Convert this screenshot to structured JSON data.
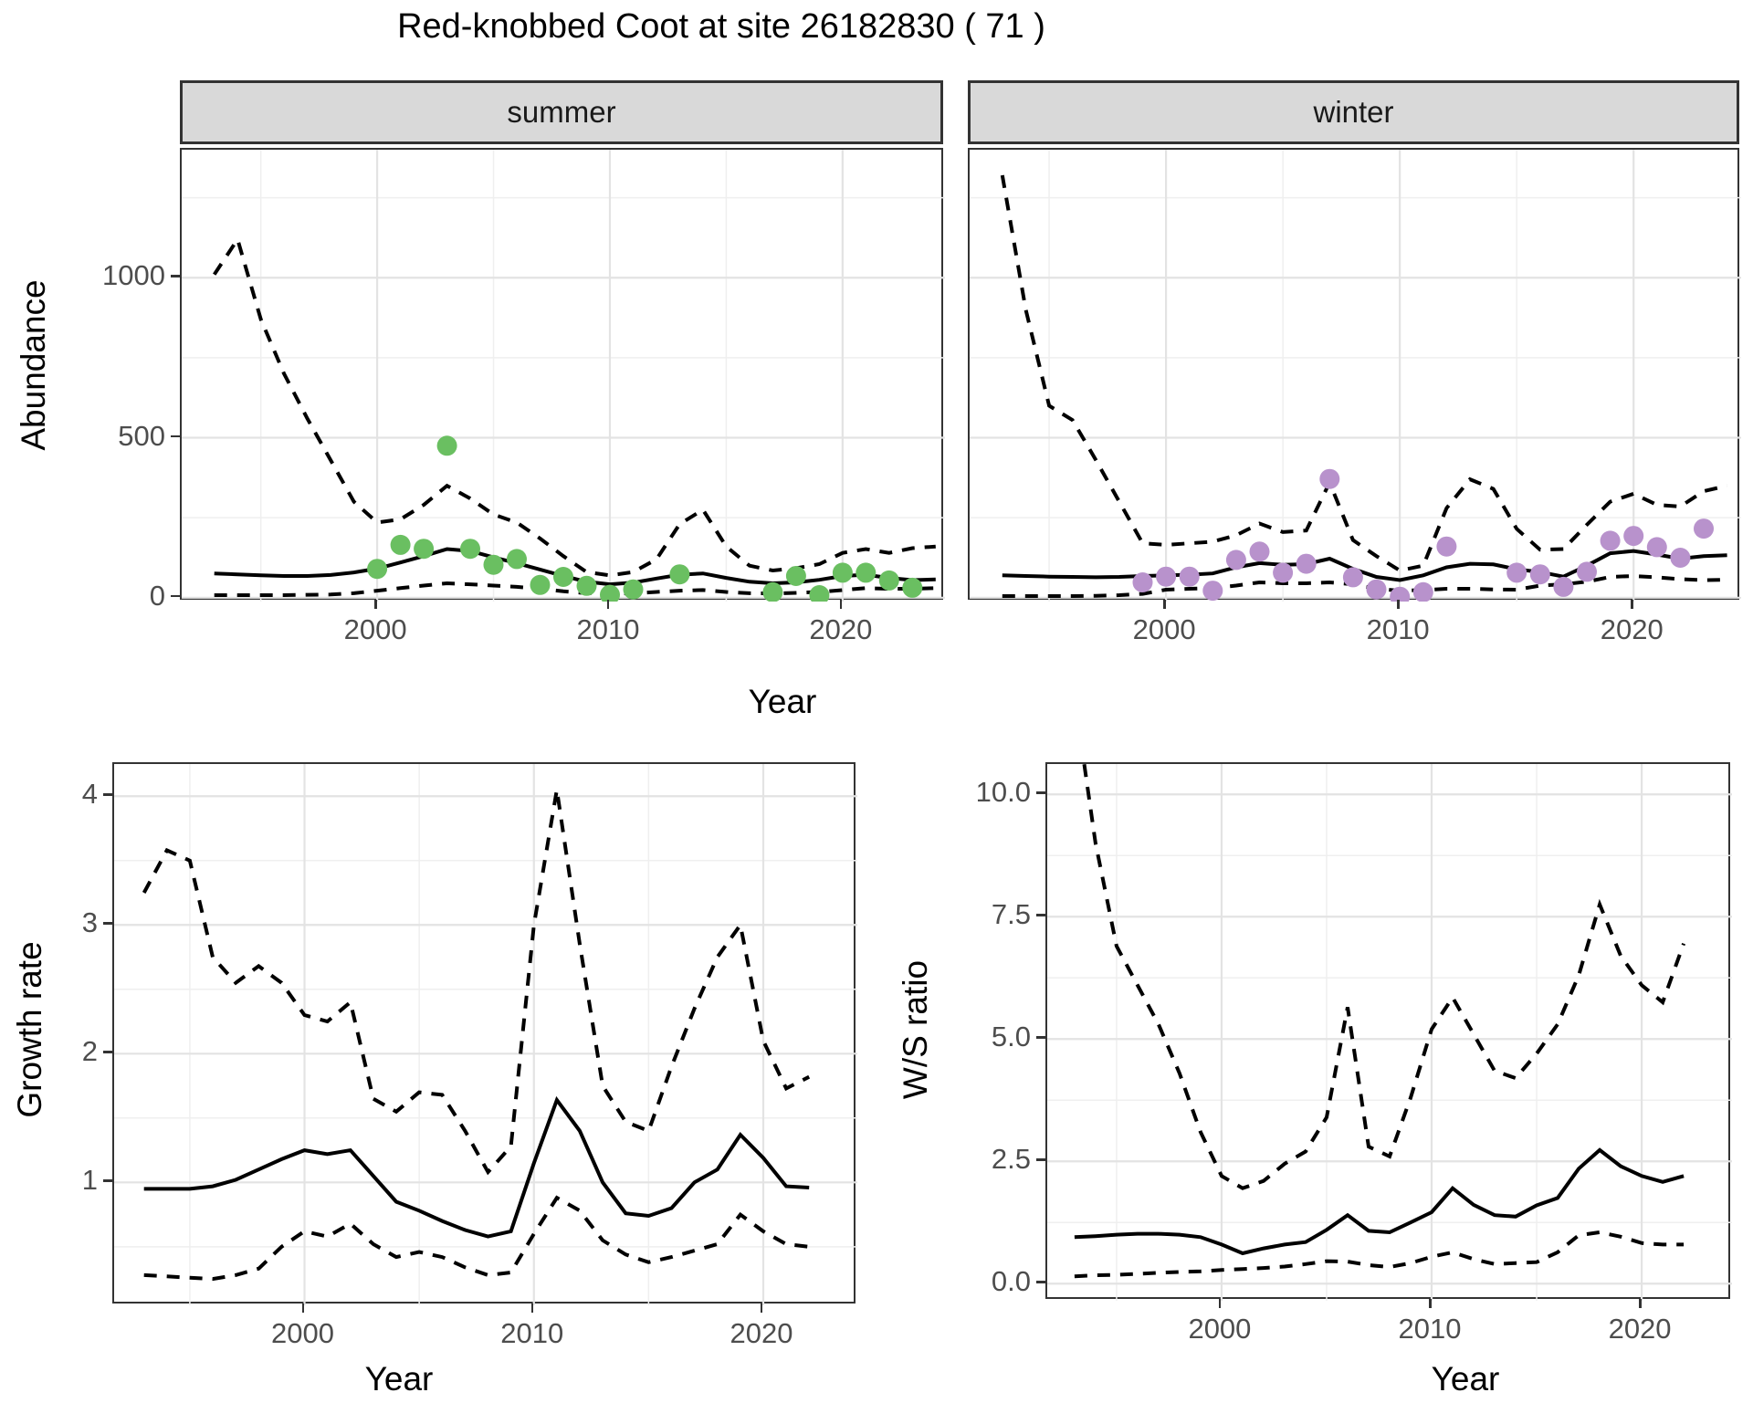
{
  "title": "Red-knobbed Coot at site 26182830 ( 71 )",
  "colors": {
    "summer_point": "#6abf61",
    "winter_point": "#b892cc",
    "line": "#000000",
    "strip_background": "#d9d9d9",
    "panel_border": "#333333",
    "grid_major": "#e3e3e3",
    "grid_minor": "#efefef",
    "tick_text": "#4d4d4d"
  },
  "chart_data": [
    {
      "id": "abundance-summer",
      "type": "line+scatter",
      "facet_label": "summer",
      "xlabel": "Year",
      "ylabel": "Abundance",
      "xlim": [
        1991.6,
        2024.4
      ],
      "ylim": [
        -12,
        1400
      ],
      "grid": true,
      "legend": "none",
      "xticks": {
        "major": [
          2000,
          2010,
          2020
        ],
        "minor": [
          1995,
          2005,
          2015
        ],
        "labels": [
          "2000",
          "2010",
          "2020"
        ]
      },
      "yticks": {
        "major": [
          0,
          500,
          1000
        ],
        "minor": [
          250,
          750,
          1250
        ],
        "labels": [
          "0",
          "500",
          "1000"
        ]
      },
      "years": [
        1993,
        1994,
        1995,
        1996,
        1997,
        1998,
        1999,
        2000,
        2001,
        2002,
        2003,
        2004,
        2005,
        2006,
        2007,
        2008,
        2009,
        2010,
        2011,
        2012,
        2013,
        2014,
        2015,
        2016,
        2017,
        2018,
        2019,
        2020,
        2021,
        2022,
        2023,
        2024
      ],
      "lines": [
        {
          "name": "mean",
          "dash": "solid",
          "values": [
            76,
            73,
            70,
            68,
            68,
            71,
            79,
            91,
            110,
            130,
            152,
            146,
            126,
            108,
            88,
            68,
            50,
            42,
            47,
            60,
            72,
            76,
            62,
            50,
            45,
            48,
            56,
            68,
            72,
            62,
            55,
            57
          ]
        },
        {
          "name": "ci-upper",
          "dash": "dashed",
          "values": [
            1010,
            1120,
            870,
            700,
            560,
            430,
            300,
            235,
            245,
            290,
            350,
            310,
            260,
            235,
            185,
            130,
            80,
            70,
            80,
            120,
            230,
            275,
            160,
            100,
            85,
            92,
            105,
            140,
            152,
            140,
            155,
            160
          ]
        },
        {
          "name": "ci-lower",
          "dash": "dashed",
          "values": [
            8,
            8,
            8,
            8,
            9,
            10,
            14,
            22,
            30,
            38,
            45,
            42,
            38,
            34,
            28,
            20,
            14,
            12,
            14,
            18,
            22,
            24,
            18,
            14,
            13,
            15,
            18,
            24,
            30,
            28,
            28,
            30
          ]
        }
      ],
      "points": {
        "name": "observed-summer",
        "color_key": "summer_point",
        "x": [
          2000,
          2001,
          2002,
          2003,
          2004,
          2005,
          2006,
          2007,
          2008,
          2009,
          2010,
          2011,
          2013,
          2017,
          2018,
          2019,
          2020,
          2021,
          2022,
          2023
        ],
        "y": [
          90,
          165,
          153,
          475,
          153,
          103,
          121,
          40,
          65,
          37,
          9,
          26,
          73,
          17,
          68,
          8,
          78,
          78,
          54,
          31
        ]
      }
    },
    {
      "id": "abundance-winter",
      "type": "line+scatter",
      "facet_label": "winter",
      "xlabel": "Year",
      "ylabel": "Abundance",
      "xlim": [
        1991.6,
        2024.6
      ],
      "ylim": [
        -12,
        1400
      ],
      "grid": true,
      "legend": "none",
      "xticks": {
        "major": [
          2000,
          2010,
          2020
        ],
        "minor": [
          1995,
          2005,
          2015
        ],
        "labels": [
          "2000",
          "2010",
          "2020"
        ]
      },
      "yticks": {
        "major": [
          0,
          500,
          1000
        ],
        "minor": [
          250,
          750,
          1250
        ],
        "labels": [
          "0",
          "500",
          "1000"
        ]
      },
      "years": [
        1993,
        1994,
        1995,
        1996,
        1997,
        1998,
        1999,
        2000,
        2001,
        2002,
        2003,
        2004,
        2005,
        2006,
        2007,
        2008,
        2009,
        2010,
        2011,
        2012,
        2013,
        2014,
        2015,
        2016,
        2017,
        2018,
        2019,
        2020,
        2021,
        2022,
        2023,
        2024
      ],
      "lines": [
        {
          "name": "mean",
          "dash": "solid",
          "values": [
            70,
            68,
            66,
            65,
            64,
            65,
            68,
            70,
            72,
            76,
            95,
            108,
            103,
            105,
            122,
            90,
            65,
            55,
            70,
            95,
            106,
            104,
            89,
            80,
            66,
            100,
            139,
            146,
            135,
            122,
            130,
            133
          ]
        },
        {
          "name": "ci-upper",
          "dash": "dashed",
          "values": [
            1320,
            900,
            600,
            555,
            430,
            300,
            170,
            165,
            170,
            175,
            195,
            232,
            205,
            210,
            360,
            180,
            130,
            85,
            100,
            280,
            370,
            340,
            215,
            150,
            152,
            228,
            300,
            325,
            290,
            285,
            333,
            350
          ]
        },
        {
          "name": "ci-lower",
          "dash": "dashed",
          "values": [
            5,
            5,
            5,
            5,
            6,
            8,
            12,
            25,
            28,
            30,
            38,
            48,
            45,
            45,
            48,
            42,
            28,
            22,
            24,
            28,
            28,
            26,
            25,
            38,
            42,
            50,
            65,
            68,
            64,
            58,
            55,
            56
          ]
        }
      ],
      "points": {
        "name": "observed-winter",
        "color_key": "winter_point",
        "x": [
          1999,
          2000,
          2001,
          2002,
          2003,
          2004,
          2005,
          2006,
          2007,
          2008,
          2009,
          2010,
          2011,
          2012,
          2015,
          2016,
          2017,
          2018,
          2019,
          2020,
          2021,
          2022,
          2023
        ],
        "y": [
          48,
          66,
          66,
          22,
          118,
          144,
          78,
          106,
          371,
          64,
          26,
          3,
          17,
          160,
          78,
          73,
          34,
          81,
          178,
          193,
          158,
          125,
          216
        ]
      }
    },
    {
      "id": "growth-rate",
      "type": "line",
      "facet_label": "",
      "xlabel": "Year",
      "ylabel": "Growth rate",
      "xlim": [
        1991.7,
        2024.1
      ],
      "ylim": [
        0.045,
        4.25
      ],
      "grid": true,
      "legend": "none",
      "xticks": {
        "major": [
          2000,
          2010,
          2020
        ],
        "minor": [
          1995,
          2005,
          2015
        ],
        "labels": [
          "2000",
          "2010",
          "2020"
        ]
      },
      "yticks": {
        "major": [
          1,
          2,
          3,
          4
        ],
        "minor": [
          0.5,
          1.5,
          2.5,
          3.5
        ],
        "labels": [
          "1",
          "2",
          "3",
          "4"
        ]
      },
      "years": [
        1993,
        1994,
        1995,
        1996,
        1997,
        1998,
        1999,
        2000,
        2001,
        2002,
        2003,
        2004,
        2005,
        2006,
        2007,
        2008,
        2009,
        2010,
        2011,
        2012,
        2013,
        2014,
        2015,
        2016,
        2017,
        2018,
        2019,
        2020,
        2021,
        2022
      ],
      "lines": [
        {
          "name": "mean",
          "dash": "solid",
          "values": [
            0.95,
            0.95,
            0.95,
            0.97,
            1.02,
            1.1,
            1.18,
            1.25,
            1.22,
            1.25,
            1.05,
            0.85,
            0.78,
            0.7,
            0.63,
            0.58,
            0.62,
            1.15,
            1.64,
            1.4,
            1.0,
            0.76,
            0.74,
            0.8,
            1.0,
            1.1,
            1.37,
            1.19,
            0.97,
            0.96
          ]
        },
        {
          "name": "ci-upper",
          "dash": "dashed",
          "values": [
            3.25,
            3.58,
            3.5,
            2.75,
            2.55,
            2.68,
            2.55,
            2.3,
            2.25,
            2.4,
            1.65,
            1.55,
            1.7,
            1.68,
            1.4,
            1.08,
            1.28,
            3.0,
            4.05,
            2.85,
            1.75,
            1.47,
            1.4,
            1.9,
            2.35,
            2.75,
            3.0,
            2.1,
            1.73,
            1.82
          ]
        },
        {
          "name": "ci-lower",
          "dash": "dashed",
          "values": [
            0.28,
            0.27,
            0.26,
            0.25,
            0.28,
            0.33,
            0.5,
            0.62,
            0.58,
            0.68,
            0.52,
            0.42,
            0.46,
            0.42,
            0.34,
            0.28,
            0.3,
            0.6,
            0.88,
            0.78,
            0.55,
            0.44,
            0.38,
            0.42,
            0.47,
            0.52,
            0.75,
            0.62,
            0.52,
            0.5
          ]
        }
      ],
      "points": null
    },
    {
      "id": "ws-ratio",
      "type": "line",
      "facet_label": "",
      "xlabel": "Year",
      "ylabel": "W/S ratio",
      "xlim": [
        1991.7,
        2024.3
      ],
      "ylim": [
        -0.35,
        10.62
      ],
      "grid": true,
      "legend": "none",
      "xticks": {
        "major": [
          2000,
          2010,
          2020
        ],
        "minor": [
          1995,
          2005,
          2015
        ],
        "labels": [
          "2000",
          "2010",
          "2020"
        ]
      },
      "yticks": {
        "major": [
          0,
          2.5,
          5,
          7.5,
          10
        ],
        "minor": [
          1.25,
          3.75,
          6.25,
          8.75
        ],
        "labels": [
          "0.0",
          "2.5",
          "5.0",
          "7.5",
          "10.0"
        ]
      },
      "years": [
        1993,
        1994,
        1995,
        1996,
        1997,
        1998,
        1999,
        2000,
        2001,
        2002,
        2003,
        2004,
        2005,
        2006,
        2007,
        2008,
        2009,
        2010,
        2011,
        2012,
        2013,
        2014,
        2015,
        2016,
        2017,
        2018,
        2019,
        2020,
        2021,
        2022
      ],
      "lines": [
        {
          "name": "mean",
          "dash": "solid",
          "values": [
            0.95,
            0.97,
            1.0,
            1.02,
            1.02,
            1.0,
            0.95,
            0.8,
            0.62,
            0.72,
            0.8,
            0.85,
            1.1,
            1.4,
            1.08,
            1.05,
            1.25,
            1.46,
            1.95,
            1.61,
            1.4,
            1.37,
            1.6,
            1.75,
            2.35,
            2.73,
            2.4,
            2.2,
            2.08,
            2.2
          ]
        },
        {
          "name": "ci-upper",
          "dash": "dashed",
          "values": [
            12.0,
            9.0,
            6.9,
            6.1,
            5.3,
            4.3,
            3.1,
            2.2,
            1.95,
            2.1,
            2.45,
            2.7,
            3.4,
            5.65,
            2.8,
            2.6,
            3.8,
            5.2,
            5.85,
            5.1,
            4.35,
            4.2,
            4.7,
            5.3,
            6.3,
            7.75,
            6.7,
            6.1,
            5.75,
            6.95
          ]
        },
        {
          "name": "ci-lower",
          "dash": "dashed",
          "values": [
            0.15,
            0.17,
            0.18,
            0.2,
            0.22,
            0.24,
            0.25,
            0.28,
            0.3,
            0.32,
            0.35,
            0.4,
            0.46,
            0.45,
            0.38,
            0.34,
            0.42,
            0.55,
            0.64,
            0.5,
            0.4,
            0.42,
            0.44,
            0.64,
            0.99,
            1.05,
            0.96,
            0.83,
            0.8,
            0.8
          ]
        }
      ],
      "points": null
    }
  ]
}
